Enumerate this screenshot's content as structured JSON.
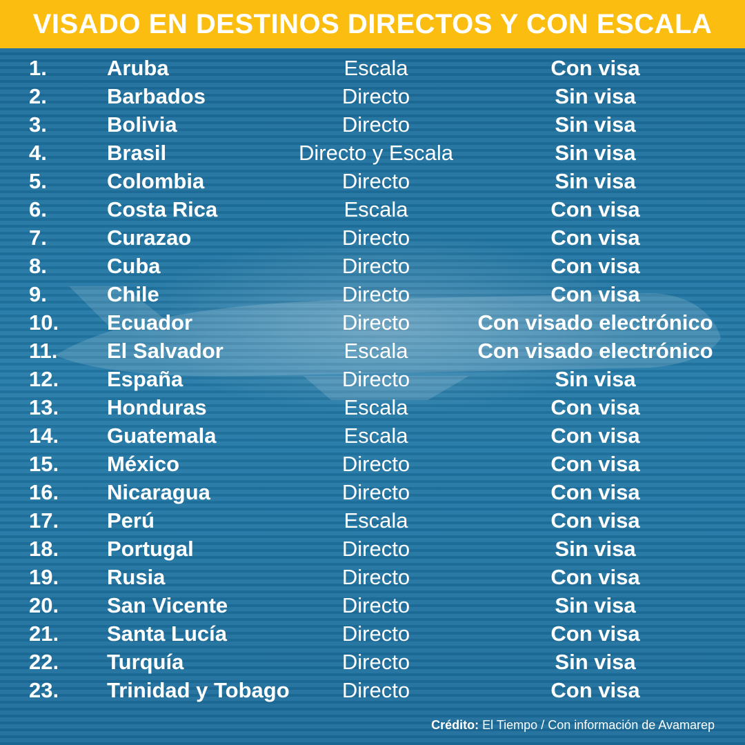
{
  "header": {
    "title": "VISADO EN DESTINOS DIRECTOS Y CON ESCALA"
  },
  "rows": [
    {
      "num": "1.",
      "country": "Aruba",
      "route": "Escala",
      "visa": "Con visa"
    },
    {
      "num": "2.",
      "country": "Barbados",
      "route": "Directo",
      "visa": "Sin visa"
    },
    {
      "num": "3.",
      "country": "Bolivia",
      "route": "Directo",
      "visa": "Sin visa"
    },
    {
      "num": "4.",
      "country": "Brasil",
      "route": "Directo y Escala",
      "visa": "Sin visa"
    },
    {
      "num": "5.",
      "country": "Colombia",
      "route": "Directo",
      "visa": "Sin visa"
    },
    {
      "num": "6.",
      "country": "Costa Rica",
      "route": "Escala",
      "visa": "Con visa"
    },
    {
      "num": "7.",
      "country": "Curazao",
      "route": "Directo",
      "visa": "Con visa"
    },
    {
      "num": "8.",
      "country": "Cuba",
      "route": "Directo",
      "visa": "Con visa"
    },
    {
      "num": "9.",
      "country": "Chile",
      "route": "Directo",
      "visa": "Con visa"
    },
    {
      "num": "10.",
      "country": "Ecuador",
      "route": "Directo",
      "visa": "Con visado electrónico"
    },
    {
      "num": "11.",
      "country": "El Salvador",
      "route": "Escala",
      "visa": "Con visado electrónico"
    },
    {
      "num": "12.",
      "country": "España",
      "route": "Directo",
      "visa": "Sin visa"
    },
    {
      "num": "13.",
      "country": "Honduras",
      "route": "Escala",
      "visa": "Con visa"
    },
    {
      "num": "14.",
      "country": "Guatemala",
      "route": "Escala",
      "visa": "Con visa"
    },
    {
      "num": "15.",
      "country": "México",
      "route": "Directo",
      "visa": "Con visa"
    },
    {
      "num": "16.",
      "country": "Nicaragua",
      "route": "Directo",
      "visa": "Con visa"
    },
    {
      "num": "17.",
      "country": "Perú",
      "route": "Escala",
      "visa": "Con visa"
    },
    {
      "num": "18.",
      "country": "Portugal",
      "route": "Directo",
      "visa": "Sin visa"
    },
    {
      "num": "19.",
      "country": "Rusia",
      "route": "Directo",
      "visa": "Con visa"
    },
    {
      "num": "20.",
      "country": "San Vicente",
      "route": "Directo",
      "visa": "Sin visa"
    },
    {
      "num": "21.",
      "country": "Santa Lucía",
      "route": "Directo",
      "visa": "Con visa"
    },
    {
      "num": "22.",
      "country": "Turquía",
      "route": "Directo",
      "visa": "Sin visa"
    },
    {
      "num": "23.",
      "country": "Trinidad y Tobago",
      "route": "Directo",
      "visa": "Con visa"
    }
  ],
  "credit": {
    "label": "Crédito:",
    "text": "El Tiempo / Con información de Avamarep"
  },
  "colors": {
    "header_bg": "#fbbd0f",
    "background": "#1d6d9a",
    "text": "#ffffff"
  }
}
